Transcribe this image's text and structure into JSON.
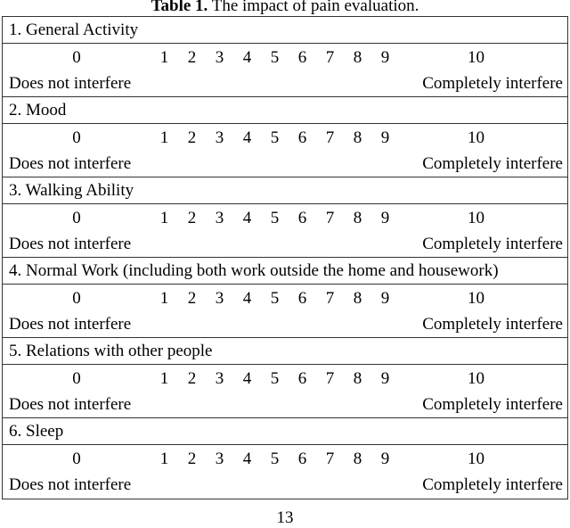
{
  "title": {
    "bold": "Table 1.",
    "rest": " The impact of pain evaluation."
  },
  "table": {
    "items": [
      {
        "name": "1. General Activity"
      },
      {
        "name": "2. Mood"
      },
      {
        "name": "3. Walking Ability"
      },
      {
        "name": "4. Normal Work (including both work outside the home and housework)"
      },
      {
        "name": "5. Relations with other people"
      },
      {
        "name": "6. Sleep"
      }
    ],
    "scale": {
      "min": "0",
      "mid_numbers": [
        "1",
        "2",
        "3",
        "4",
        "5",
        "6",
        "7",
        "8",
        "9"
      ],
      "max": "10",
      "min_label": "Does not interfere",
      "max_label": "Completely interfere"
    }
  },
  "page_number": "13",
  "colors": {
    "border": "#333333",
    "text": "#000000",
    "background": "#ffffff"
  }
}
